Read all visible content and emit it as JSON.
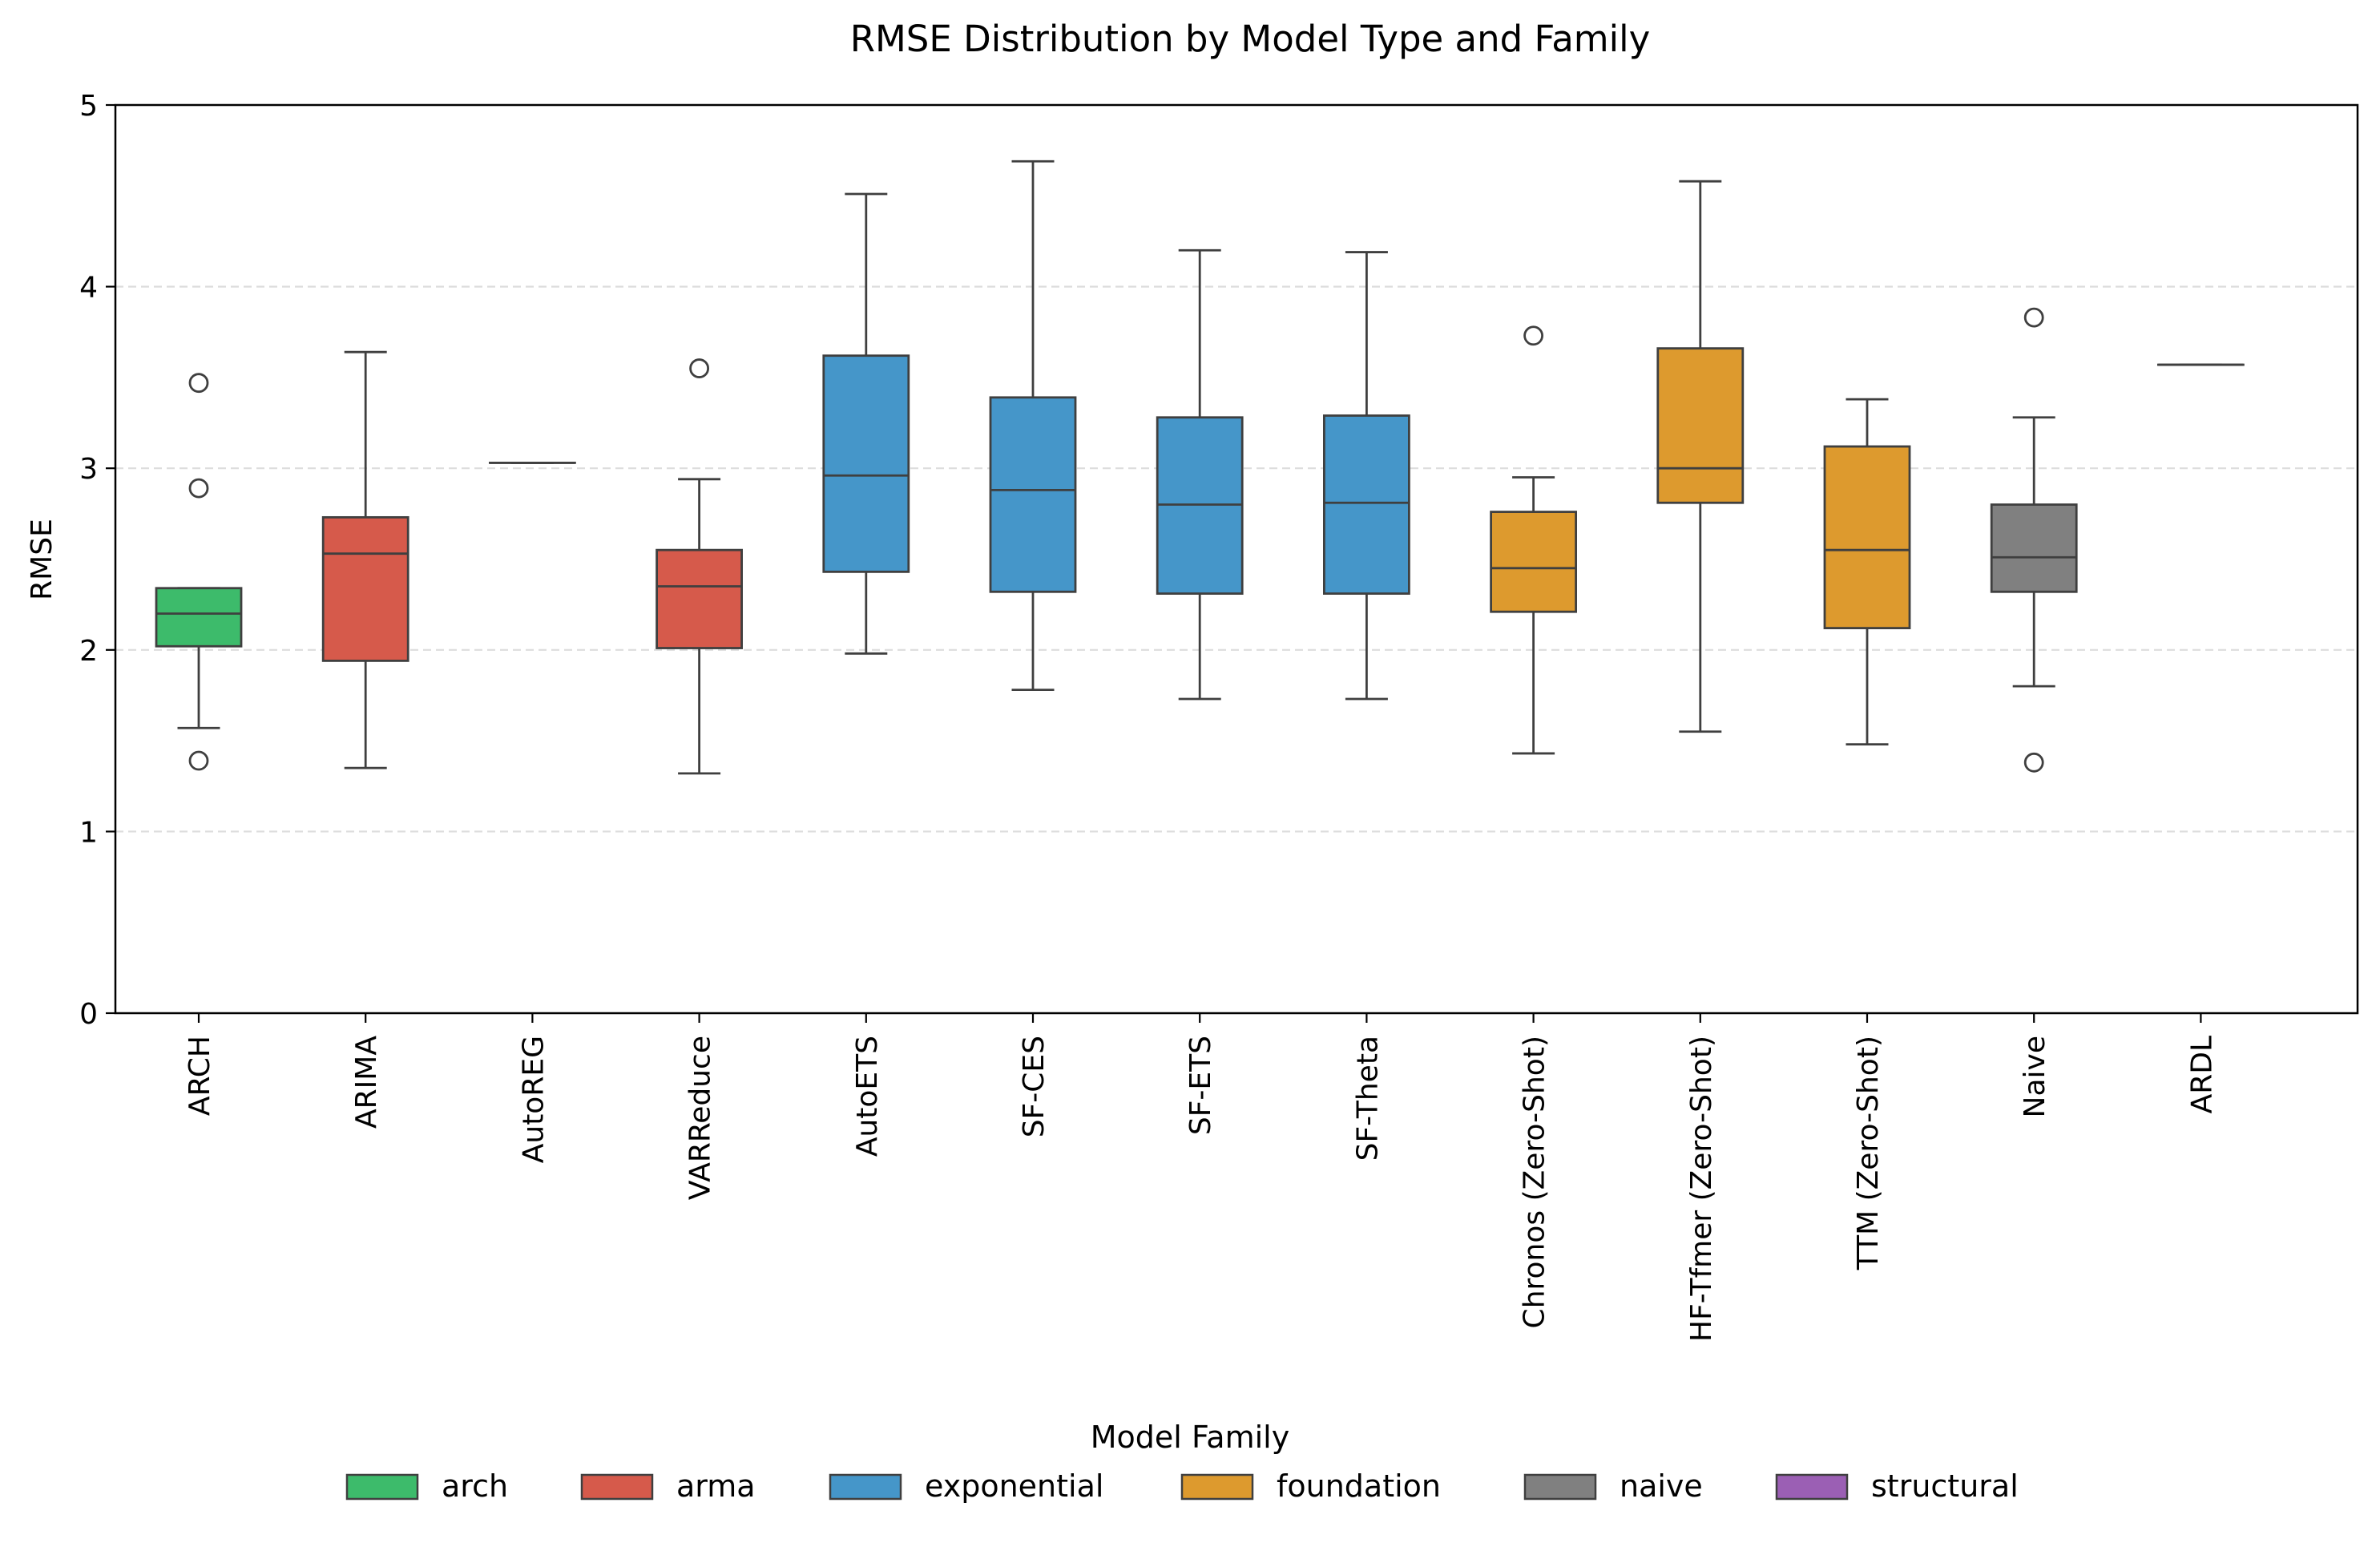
{
  "chart_data": {
    "type": "box",
    "title": "RMSE Distribution by Model Type and Family",
    "xlabel": "",
    "ylabel": "RMSE",
    "ylim": [
      0,
      5
    ],
    "yticks": [
      "0",
      "1",
      "2",
      "3",
      "4",
      "5"
    ],
    "grid": "horizontal dashed",
    "legend_title": "Model Family",
    "legend_position": "bottom-center",
    "families": [
      {
        "name": "arch",
        "color": "#3dbb6b"
      },
      {
        "name": "arma",
        "color": "#d65a4b"
      },
      {
        "name": "exponential",
        "color": "#4596c9"
      },
      {
        "name": "foundation",
        "color": "#dd9a2e"
      },
      {
        "name": "naive",
        "color": "#808080"
      },
      {
        "name": "structural",
        "color": "#9b5fb4"
      }
    ],
    "boxes": [
      {
        "label": "ARCH",
        "family": "arch",
        "whisker_low": 1.57,
        "q1": 2.02,
        "median": 2.2,
        "q3": 2.34,
        "whisker_high": 2.34,
        "outliers": [
          3.47,
          2.89,
          1.39
        ]
      },
      {
        "label": "ARIMA",
        "family": "arma",
        "whisker_low": 1.35,
        "q1": 1.94,
        "median": 2.53,
        "q3": 2.73,
        "whisker_high": 3.64,
        "outliers": []
      },
      {
        "label": "AutoREG",
        "family": "arma",
        "whisker_low": 3.03,
        "q1": 3.03,
        "median": 3.03,
        "q3": 3.03,
        "whisker_high": 3.03,
        "outliers": []
      },
      {
        "label": "VARReduce",
        "family": "arma",
        "whisker_low": 1.32,
        "q1": 2.01,
        "median": 2.35,
        "q3": 2.55,
        "whisker_high": 2.94,
        "outliers": [
          3.55
        ]
      },
      {
        "label": "AutoETS",
        "family": "exponential",
        "whisker_low": 1.98,
        "q1": 2.43,
        "median": 2.96,
        "q3": 3.62,
        "whisker_high": 4.51,
        "outliers": []
      },
      {
        "label": "SF-CES",
        "family": "exponential",
        "whisker_low": 1.78,
        "q1": 2.32,
        "median": 2.88,
        "q3": 3.39,
        "whisker_high": 4.69,
        "outliers": []
      },
      {
        "label": "SF-ETS",
        "family": "exponential",
        "whisker_low": 1.73,
        "q1": 2.31,
        "median": 2.8,
        "q3": 3.28,
        "whisker_high": 4.2,
        "outliers": []
      },
      {
        "label": "SF-Theta",
        "family": "exponential",
        "whisker_low": 1.73,
        "q1": 2.31,
        "median": 2.81,
        "q3": 3.29,
        "whisker_high": 4.19,
        "outliers": []
      },
      {
        "label": "Chronos (Zero-Shot)",
        "family": "foundation",
        "whisker_low": 1.43,
        "q1": 2.21,
        "median": 2.45,
        "q3": 2.76,
        "whisker_high": 2.95,
        "outliers": [
          3.73
        ]
      },
      {
        "label": "HF-Tfmer (Zero-Shot)",
        "family": "foundation",
        "whisker_low": 1.55,
        "q1": 2.81,
        "median": 3.0,
        "q3": 3.66,
        "whisker_high": 4.58,
        "outliers": []
      },
      {
        "label": "TTM (Zero-Shot)",
        "family": "foundation",
        "whisker_low": 1.48,
        "q1": 2.12,
        "median": 2.55,
        "q3": 3.12,
        "whisker_high": 3.38,
        "outliers": []
      },
      {
        "label": "Naive",
        "family": "naive",
        "whisker_low": 1.8,
        "q1": 2.32,
        "median": 2.51,
        "q3": 2.8,
        "whisker_high": 3.28,
        "outliers": [
          3.83,
          1.38
        ]
      },
      {
        "label": "ARDL",
        "family": "structural",
        "whisker_low": 3.57,
        "q1": 3.57,
        "median": 3.57,
        "q3": 3.57,
        "whisker_high": 3.57,
        "outliers": []
      }
    ]
  }
}
